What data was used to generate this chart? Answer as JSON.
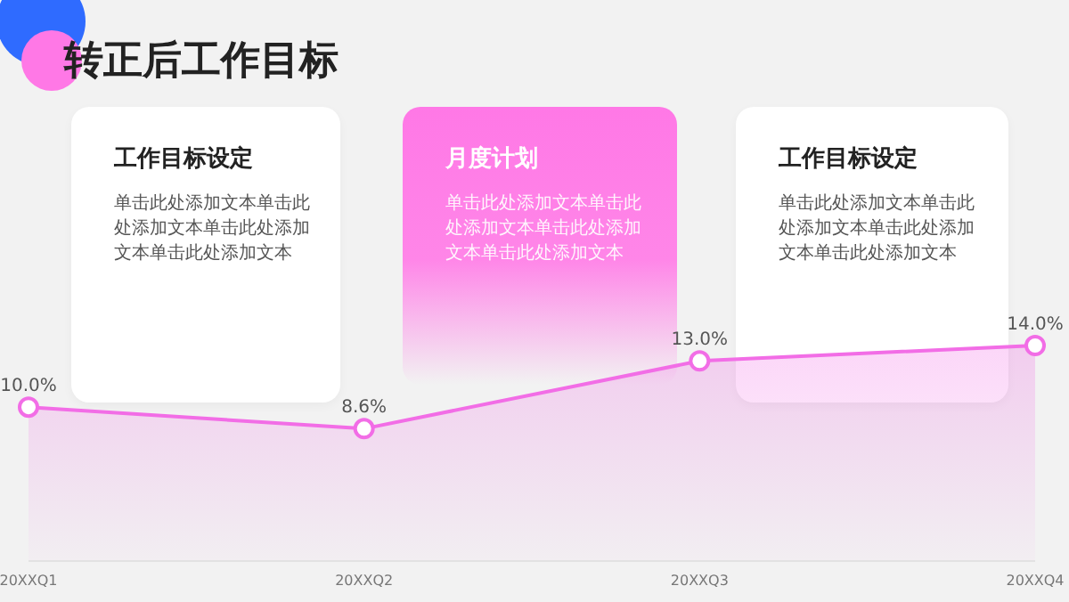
{
  "chart_data": {
    "type": "area",
    "title": "转正后工作目标",
    "categories": [
      "20XXQ1",
      "20XXQ2",
      "20XXQ3",
      "20XXQ4"
    ],
    "series": [
      {
        "color": "#f26de6",
        "values": [
          10.0,
          8.6,
          13.0,
          14.0
        ],
        "value_labels": [
          "10.0%",
          "8.6%",
          "13.0%",
          "14.0%"
        ]
      }
    ],
    "marker": "circle",
    "grid": false,
    "legend": false,
    "annotations": [
      "工作目标设定",
      "单击此处添加文本单击此处添加文本单击此处添加文本单击此处添加文本",
      "月度计划",
      "单击此处添加文本单击此处添加文本单击此处添加文本单击此处添加文本",
      "工作目标设定",
      "单击此处添加文本单击此处添加文本单击此处添加文本单击此处添加文本"
    ]
  }
}
